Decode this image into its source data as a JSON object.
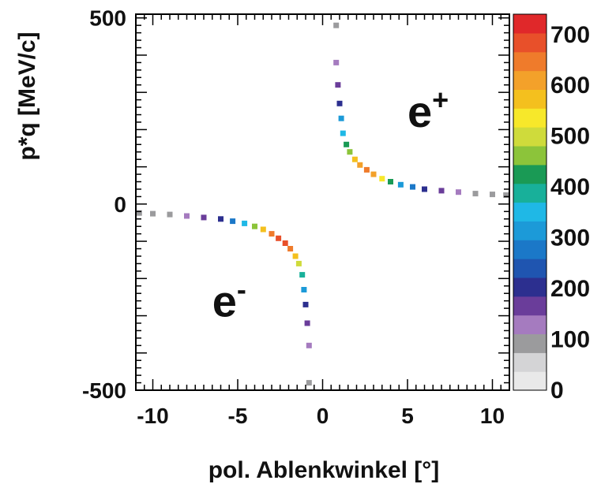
{
  "chart_data": {
    "type": "heatmap",
    "xlabel": "pol. Ablenkwinkel [°]",
    "ylabel": "p*q [MeV/c]",
    "xlim": [
      -11,
      11
    ],
    "ylim": [
      -500,
      510
    ],
    "x_ticks": [
      "-10",
      "-5",
      "0",
      "5",
      "10"
    ],
    "x_tick_values": [
      -10,
      -5,
      0,
      5,
      10
    ],
    "y_ticks": [
      "500",
      "0",
      "-500"
    ],
    "y_tick_values": [
      500,
      0,
      -500
    ],
    "annotations": [
      {
        "base": "e",
        "sup": "+",
        "x": 5.0,
        "y": 250
      },
      {
        "base": "e",
        "sup": "-",
        "x": -6.5,
        "y": -260
      }
    ],
    "colorbar": {
      "min": 0,
      "max": 740,
      "tick_labels": [
        "0",
        "100",
        "200",
        "300",
        "400",
        "500",
        "600",
        "700"
      ],
      "tick_values": [
        0,
        100,
        200,
        300,
        400,
        500,
        600,
        700
      ],
      "colors": [
        "#e9e9e9",
        "#d4d4d6",
        "#9b9b9d",
        "#a57bbf",
        "#6a3d9a",
        "#2c2f8f",
        "#1f55b0",
        "#1b78c8",
        "#1c9ad8",
        "#1fb8e6",
        "#18b09a",
        "#1a9a55",
        "#8cc43a",
        "#cfdb3b",
        "#f7e82a",
        "#f4c01e",
        "#f3a12a",
        "#ef7b2b",
        "#e8502a",
        "#e0282a"
      ]
    },
    "series": [
      {
        "name": "e+",
        "points": [
          [
            0.8,
            480,
            100
          ],
          [
            0.8,
            380,
            130
          ],
          [
            0.9,
            320,
            180
          ],
          [
            1.0,
            270,
            220
          ],
          [
            1.1,
            230,
            300
          ],
          [
            1.2,
            190,
            360
          ],
          [
            1.4,
            160,
            420
          ],
          [
            1.6,
            140,
            480
          ],
          [
            1.9,
            120,
            560
          ],
          [
            2.2,
            105,
            620
          ],
          [
            2.6,
            92,
            660
          ],
          [
            3.0,
            80,
            600
          ],
          [
            3.5,
            68,
            520
          ],
          [
            4.0,
            60,
            430
          ],
          [
            4.6,
            52,
            330
          ],
          [
            5.3,
            46,
            260
          ],
          [
            6.0,
            40,
            210
          ],
          [
            7.0,
            36,
            170
          ],
          [
            8.0,
            32,
            140
          ],
          [
            9.0,
            28,
            110
          ],
          [
            10.0,
            26,
            100
          ],
          [
            10.8,
            24,
            90
          ]
        ]
      },
      {
        "name": "e-",
        "points": [
          [
            -0.8,
            -480,
            100
          ],
          [
            -0.8,
            -380,
            130
          ],
          [
            -0.9,
            -320,
            180
          ],
          [
            -1.0,
            -270,
            220
          ],
          [
            -1.1,
            -230,
            300
          ],
          [
            -1.2,
            -190,
            400
          ],
          [
            -1.4,
            -160,
            500
          ],
          [
            -1.6,
            -140,
            580
          ],
          [
            -1.9,
            -120,
            640
          ],
          [
            -2.2,
            -105,
            680
          ],
          [
            -2.6,
            -92,
            700
          ],
          [
            -3.0,
            -80,
            650
          ],
          [
            -3.5,
            -68,
            560
          ],
          [
            -4.0,
            -60,
            460
          ],
          [
            -4.6,
            -52,
            350
          ],
          [
            -5.3,
            -46,
            270
          ],
          [
            -6.0,
            -40,
            210
          ],
          [
            -7.0,
            -36,
            170
          ],
          [
            -8.0,
            -32,
            140
          ],
          [
            -9.0,
            -28,
            110
          ],
          [
            -10.0,
            -26,
            100
          ],
          [
            -10.8,
            -24,
            90
          ]
        ]
      }
    ]
  }
}
